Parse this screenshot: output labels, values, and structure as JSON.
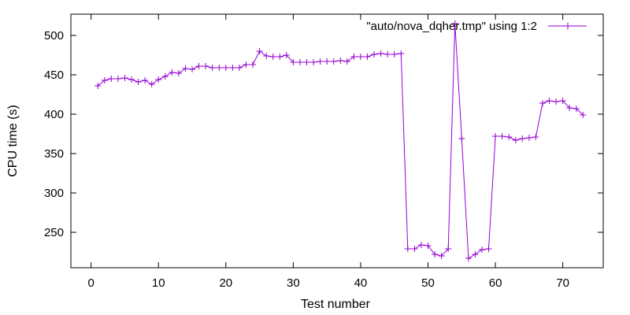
{
  "chart_data": {
    "type": "line",
    "xlabel": "Test number",
    "ylabel": "CPU time (s)",
    "xlim": [
      -3,
      76
    ],
    "ylim": [
      205,
      527
    ],
    "x_ticks": [
      0,
      10,
      20,
      30,
      40,
      50,
      60,
      70
    ],
    "y_ticks": [
      250,
      300,
      350,
      400,
      450,
      500
    ],
    "grid": false,
    "legend_position": "top-right",
    "series": [
      {
        "name": "\"auto/nova_dqher.tmp\" using 1:2",
        "color": "#9400d3",
        "marker": "plus",
        "x": [
          1,
          2,
          3,
          4,
          5,
          6,
          7,
          8,
          9,
          10,
          11,
          12,
          13,
          14,
          15,
          16,
          17,
          18,
          19,
          20,
          21,
          22,
          23,
          24,
          25,
          26,
          27,
          28,
          29,
          30,
          31,
          32,
          33,
          34,
          35,
          36,
          37,
          38,
          39,
          40,
          41,
          42,
          43,
          44,
          45,
          46,
          47,
          48,
          49,
          50,
          51,
          52,
          53,
          54,
          55,
          56,
          57,
          58,
          59,
          60,
          61,
          62,
          63,
          64,
          65,
          66,
          67,
          68,
          69,
          70,
          71,
          72,
          73
        ],
        "values": [
          436,
          443,
          445,
          445,
          446,
          444,
          441,
          443,
          438,
          444,
          448,
          453,
          452,
          458,
          457,
          461,
          461,
          459,
          459,
          459,
          459,
          459,
          463,
          463,
          480,
          474,
          473,
          473,
          475,
          466,
          466,
          466,
          466,
          467,
          467,
          467,
          468,
          467,
          473,
          473,
          473,
          476,
          477,
          476,
          476,
          477,
          229,
          229,
          234,
          233,
          222,
          220,
          229,
          515,
          369,
          217,
          222,
          228,
          229,
          372,
          372,
          371,
          367,
          369,
          370,
          371,
          414,
          417,
          416,
          417,
          408,
          407,
          399
        ]
      }
    ]
  }
}
